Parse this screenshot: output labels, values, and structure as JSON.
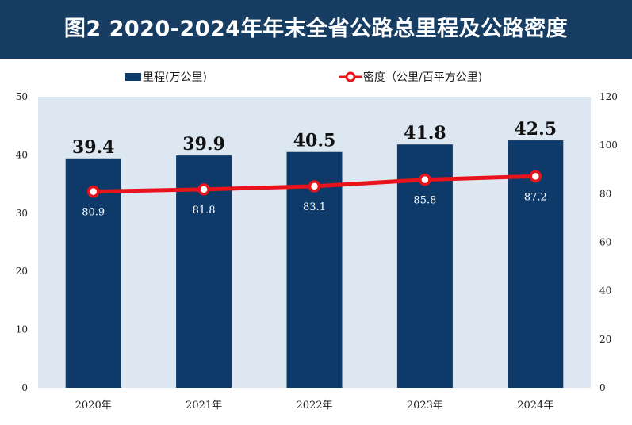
{
  "title": "图2  2020-2024年年末全省公路总里程及公路密度",
  "chart_data": {
    "type": "bar+line",
    "categories": [
      "2020年",
      "2021年",
      "2022年",
      "2023年",
      "2024年"
    ],
    "series": [
      {
        "name": "里程(万公里)",
        "type": "bar",
        "axis": "left",
        "values": [
          39.4,
          39.9,
          40.5,
          41.8,
          42.5
        ],
        "color": "#0e3a6a"
      },
      {
        "name": "密度（公里/百平方公里)",
        "type": "line",
        "axis": "right",
        "values": [
          80.9,
          81.8,
          83.1,
          85.8,
          87.2
        ],
        "color": "#e8131b"
      }
    ],
    "y_left": {
      "min": 0,
      "max": 50,
      "ticks": [
        0,
        10,
        20,
        30,
        40,
        50
      ]
    },
    "y_right": {
      "min": 0,
      "max": 120,
      "ticks": [
        0,
        20,
        40,
        60,
        80,
        100,
        120
      ]
    },
    "legend": "top",
    "grid": false,
    "colors": {
      "header": "#173d63",
      "plot_bg": "#dde7f1",
      "bar": "#0e3a6a",
      "line": "#e8131b"
    }
  }
}
